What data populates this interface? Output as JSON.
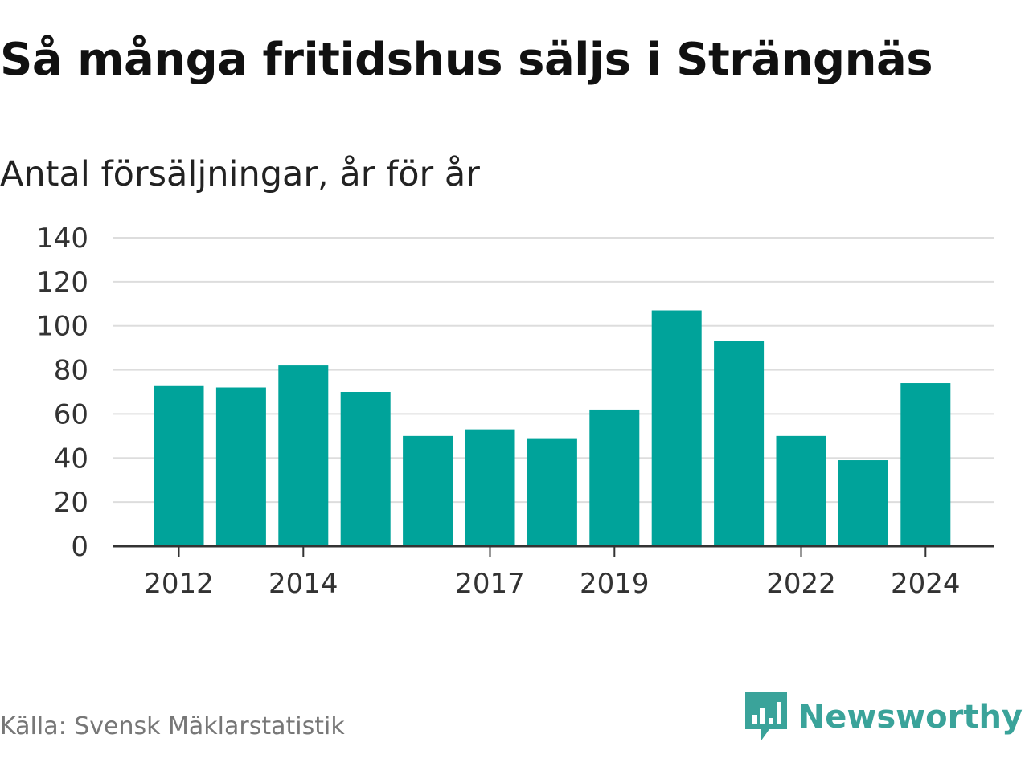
{
  "title": "Så många fritidshus säljs i Strängnäs",
  "subtitle": "Antal försäljningar, år för år",
  "source": "Källa: Svensk Mäklarstatistik",
  "brand": {
    "name": "Newsworthy",
    "icon": "newsworthy-logo-icon",
    "color": "#3aa39a"
  },
  "chart_data": {
    "type": "bar",
    "x": [
      2012,
      2013,
      2014,
      2015,
      2016,
      2017,
      2018,
      2019,
      2020,
      2021,
      2022,
      2023,
      2024
    ],
    "values": [
      73,
      72,
      82,
      70,
      50,
      53,
      49,
      62,
      107,
      93,
      50,
      39,
      74
    ],
    "x_tick_labels": [
      "2012",
      "2014",
      "2017",
      "2019",
      "2022",
      "2024"
    ],
    "y_ticks": [
      0,
      20,
      40,
      60,
      80,
      100,
      120,
      140
    ],
    "ylim": [
      0,
      140
    ],
    "grid": true,
    "bar_color": "#00a39a",
    "title": "Så många fritidshus säljs i Strängnäs",
    "subtitle": "Antal försäljningar, år för år",
    "xlabel": "",
    "ylabel": ""
  }
}
